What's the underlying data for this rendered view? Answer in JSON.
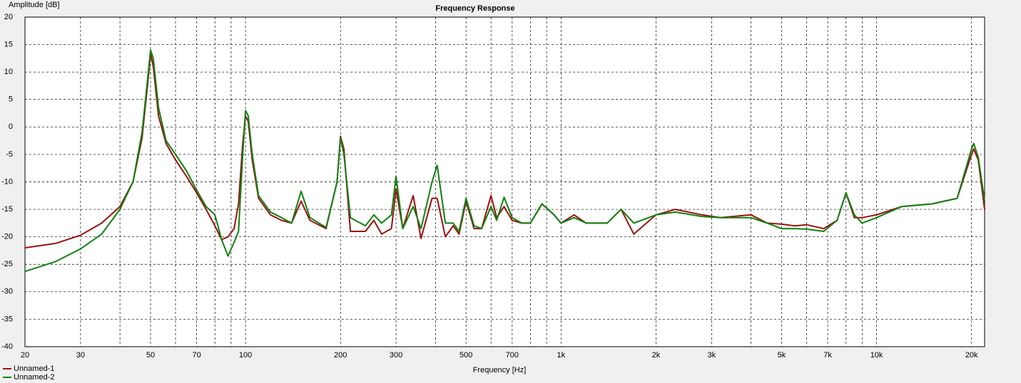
{
  "chart_data": {
    "type": "line",
    "title": "Frequency Response",
    "ylabel": "Amplitude [dB]",
    "xlabel": "Frequency [Hz]",
    "xscale": "log",
    "xlim": [
      20,
      22000
    ],
    "ylim": [
      -40,
      20
    ],
    "yticks": [
      -40,
      -35,
      -30,
      -25,
      -20,
      -15,
      -10,
      -5,
      0,
      5,
      10,
      15,
      20
    ],
    "xticks": [
      20,
      30,
      50,
      70,
      100,
      200,
      300,
      500,
      700,
      {
        "value": 1000,
        "label": "1k"
      },
      {
        "value": 2000,
        "label": "2k"
      },
      {
        "value": 3000,
        "label": "3k"
      },
      {
        "value": 5000,
        "label": "5k"
      },
      {
        "value": 7000,
        "label": "7k"
      },
      {
        "value": 10000,
        "label": "10k"
      },
      {
        "value": 20000,
        "label": "20k"
      }
    ],
    "xminor_ticks": [
      40,
      60,
      80,
      90,
      400,
      600,
      800,
      900,
      4000,
      6000,
      8000,
      9000
    ],
    "grid": true,
    "legend": "bottom-left",
    "x": [
      20,
      25,
      30,
      35,
      40,
      44,
      47,
      49,
      50,
      51,
      53,
      56,
      60,
      65,
      70,
      75,
      80,
      84,
      88,
      92,
      95,
      98,
      100,
      102,
      105,
      110,
      120,
      130,
      140,
      150,
      160,
      180,
      195,
      200,
      205,
      215,
      240,
      255,
      270,
      290,
      300,
      315,
      340,
      360,
      390,
      405,
      430,
      455,
      475,
      500,
      530,
      560,
      600,
      625,
      660,
      700,
      750,
      800,
      870,
      950,
      1000,
      1100,
      1200,
      1400,
      1550,
      1700,
      2000,
      2300,
      2800,
      3200,
      4000,
      4500,
      5000,
      5500,
      6000,
      6800,
      7500,
      8000,
      8500,
      9000,
      10000,
      12000,
      15000,
      18000,
      20000,
      20300,
      21000,
      22000
    ],
    "series": [
      {
        "name": "Unnamed-1",
        "color": "#9c1010",
        "values": [
          -22,
          -21.2,
          -19.7,
          -17.5,
          -14.5,
          -10,
          -2,
          8,
          13.3,
          11,
          2,
          -3,
          -6,
          -9,
          -12,
          -15,
          -18,
          -20.5,
          -20,
          -18.5,
          -14,
          -3,
          2,
          1,
          -6,
          -13,
          -16,
          -17,
          -17.5,
          -13.5,
          -17,
          -18.5,
          -10,
          -1.7,
          -4,
          -19,
          -19,
          -17,
          -19.5,
          -18.5,
          -11.3,
          -18.5,
          -12.5,
          -20.3,
          -13,
          -13,
          -20,
          -18,
          -19.5,
          -13.5,
          -18.5,
          -18.5,
          -12.5,
          -16.5,
          -14.5,
          -17,
          -17.5,
          -17.5,
          -14,
          -16,
          -17.5,
          -16,
          -17.5,
          -17.5,
          -15,
          -19.5,
          -16,
          -15,
          -16,
          -16.5,
          -16,
          -17.5,
          -17.7,
          -18,
          -17.8,
          -18.5,
          -17,
          -12,
          -16.5,
          -16.5,
          -16,
          -14.5,
          -14,
          -13,
          -5,
          -4,
          -6,
          -15
        ]
      },
      {
        "name": "Unnamed-2",
        "color": "#108010",
        "values": [
          -26.3,
          -24.5,
          -22.2,
          -19.5,
          -15,
          -10,
          -1,
          9,
          14,
          12.5,
          3.5,
          -2.5,
          -5,
          -8,
          -11.5,
          -14.5,
          -16,
          -20.5,
          -23.5,
          -21,
          -19,
          -5,
          3,
          2,
          -5,
          -12.5,
          -15.5,
          -16.5,
          -17.5,
          -11.7,
          -16.5,
          -18.3,
          -10,
          -2,
          -5,
          -16.5,
          -18,
          -16,
          -17.5,
          -16,
          -9,
          -18.5,
          -14.5,
          -18.5,
          -10,
          -7,
          -17.5,
          -17.5,
          -19,
          -13,
          -18,
          -18.5,
          -14.5,
          -17,
          -12.8,
          -16.5,
          -17.5,
          -17.5,
          -14,
          -16,
          -17.5,
          -16.5,
          -17.5,
          -17.5,
          -15,
          -17.5,
          -16,
          -15.5,
          -16.3,
          -16.5,
          -16.5,
          -17.5,
          -18.5,
          -18.5,
          -18.6,
          -19,
          -17,
          -12,
          -16,
          -17.5,
          -16.5,
          -14.5,
          -14,
          -13,
          -4,
          -3,
          -5.5,
          -13.5
        ]
      }
    ]
  }
}
